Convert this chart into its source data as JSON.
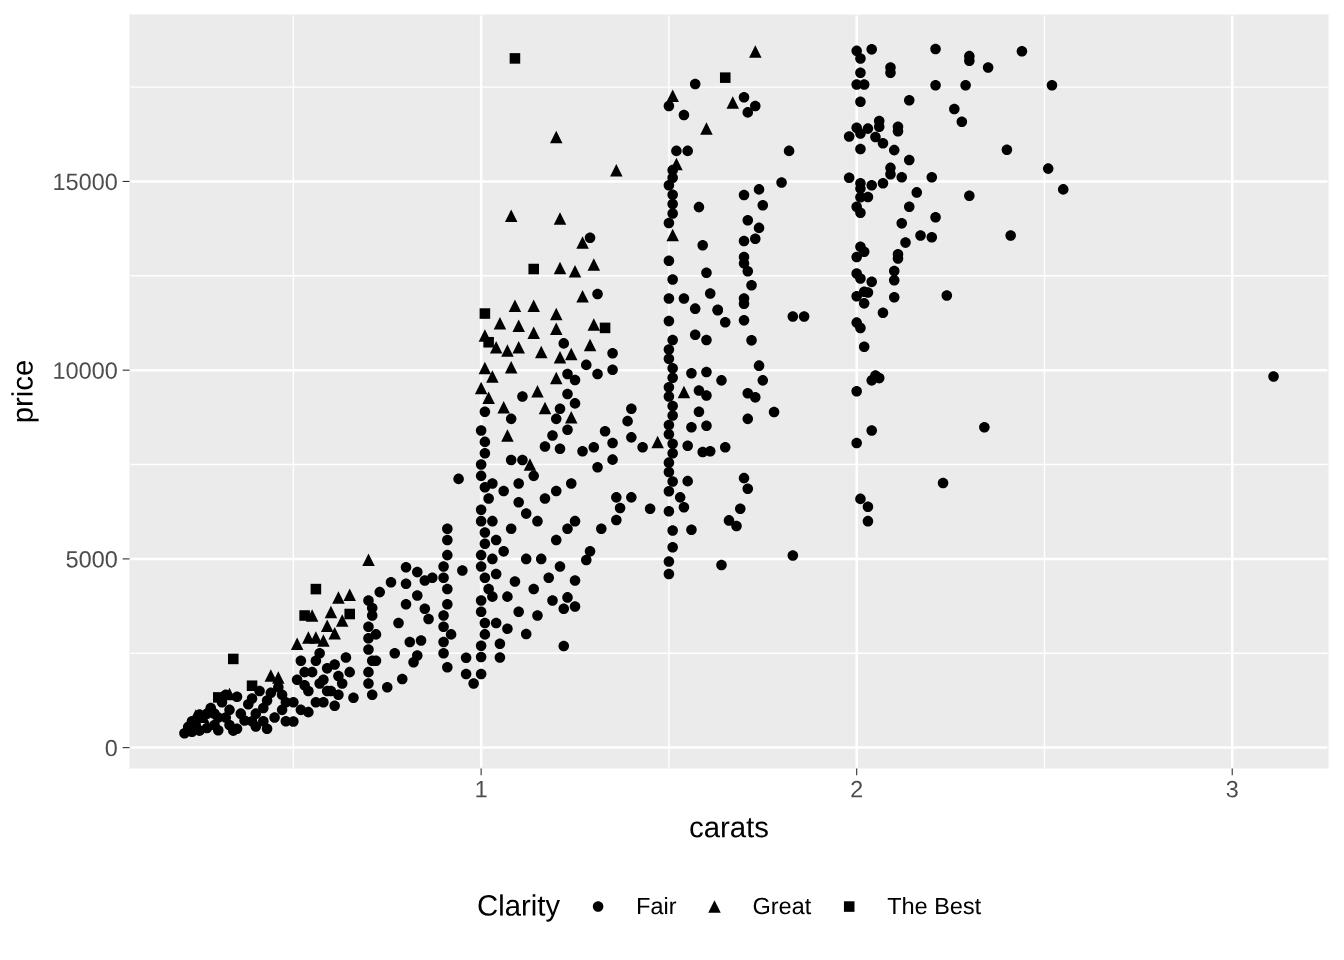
{
  "chart_data": {
    "type": "scatter",
    "xlabel": "carats",
    "ylabel": "price",
    "legend_title": "Clarity",
    "legend": "bottom",
    "grid": true,
    "xlim": [
      0.065,
      3.255
    ],
    "ylim": [
      -540,
      19410
    ],
    "xticks": [
      1,
      2,
      3
    ],
    "yticks": [
      0,
      5000,
      10000,
      15000
    ],
    "series": [
      {
        "name": "Fair",
        "color": "#000000",
        "marker": "circle",
        "x": [
          0.21,
          0.23,
          0.23,
          0.25,
          0.25,
          0.27,
          0.28,
          0.3,
          0.3,
          0.31,
          0.33,
          0.33,
          0.35,
          0.35,
          0.37,
          0.38,
          0.4,
          0.4,
          0.41,
          0.43,
          0.43,
          0.45,
          0.46,
          0.48,
          0.48,
          0.5,
          0.5,
          0.51,
          0.52,
          0.54,
          0.54,
          0.55,
          0.57,
          0.58,
          0.58,
          0.61,
          0.6,
          0.61,
          0.63,
          0.64,
          0.66,
          0.65,
          0.71,
          0.7,
          0.7,
          0.7,
          0.71,
          0.73,
          0.72,
          0.72,
          0.75,
          0.76,
          0.77,
          0.78,
          0.79,
          0.8,
          0.8,
          0.8,
          0.81,
          0.83,
          0.83,
          0.82,
          0.83,
          0.84,
          0.85,
          0.85,
          0.86,
          0.87,
          0.91,
          0.9,
          0.9,
          0.91,
          0.9,
          0.91,
          0.91,
          0.94,
          0.92,
          0.96,
          0.98,
          0.96,
          0.95,
          1.0,
          1.0,
          1.01,
          1.0,
          1.02,
          1.0,
          1.01,
          1.0,
          1.02,
          1.0,
          1.01,
          1.0,
          1.01,
          1.03,
          1.04,
          1.05,
          1.05,
          1.07,
          1.12,
          1.22,
          1.22,
          1.23,
          1.25,
          1.25,
          1.28,
          1.29,
          1.32,
          1.36,
          1.37,
          1.36,
          1.31,
          1.35,
          1.35,
          1.3,
          1.27,
          1.21,
          1.17,
          1.08,
          1.11,
          1.1,
          1.15,
          1.2,
          1.12,
          1.18,
          1.07,
          1.15,
          1.2,
          1.25,
          1.1,
          1.08,
          1.19,
          1.23,
          1.2,
          1.21,
          1.25,
          1.11,
          1.23,
          1.25,
          1.23,
          1.31,
          1.28,
          1.35,
          1.35,
          1.22,
          1.33,
          1.4,
          1.39,
          1.4,
          1.43,
          1.4,
          1.45,
          1.29,
          1.31,
          1.5,
          1.5,
          1.51,
          1.51,
          1.5,
          1.5,
          1.5,
          1.51,
          1.5,
          1.51,
          1.5,
          1.51,
          1.5,
          1.51,
          1.5,
          1.5,
          1.51,
          1.5,
          1.5,
          1.51,
          1.5,
          1.51,
          1.52,
          1.55,
          1.5,
          1.54,
          1.54,
          1.57,
          1.55,
          1.53,
          1.54,
          1.56,
          1.55,
          1.56,
          1.6,
          1.58,
          1.6,
          1.58,
          1.56,
          1.6,
          1.64,
          1.57,
          1.6,
          1.63,
          1.65,
          1.7,
          1.72,
          1.7,
          1.74,
          1.75,
          1.71,
          1.73,
          1.78,
          1.71,
          1.65,
          1.59,
          1.61,
          1.7,
          1.71,
          1.69,
          1.66,
          1.68,
          1.83,
          1.64,
          1.83,
          1.86,
          1.57,
          1.7,
          1.73,
          1.71,
          1.82,
          1.8,
          1.74,
          1.7,
          1.75,
          1.58,
          1.71,
          1.74,
          1.73,
          1.7,
          1.59,
          1.7,
          1.7,
          1.71,
          1.6,
          1.72,
          1.61,
          1.7,
          1.63,
          2.0,
          2.04,
          2.01,
          2.01,
          2.0,
          2.02,
          2.01,
          2.09,
          2.09,
          2.21,
          2.21,
          2.29,
          2.3,
          2.3,
          2.35,
          2.44,
          2.52,
          2.14,
          2.26,
          2.28,
          2.0,
          2.03,
          2.06,
          2.06,
          2.11,
          2.11,
          1.98,
          2.01,
          2.05,
          2.07,
          2.01,
          2.1,
          2.14,
          2.4,
          2.51,
          1.98,
          2.01,
          2.01,
          2.04,
          2.07,
          2.09,
          2.09,
          2.12,
          2.2,
          2.55,
          2.16,
          2.3,
          2.01,
          2.03,
          2.0,
          2.01,
          2.14,
          2.21,
          2.12,
          2.17,
          2.2,
          2.41,
          2.13,
          2.01,
          2.02,
          2.0,
          2.11,
          2.11,
          2.1,
          2.1,
          2.0,
          2.01,
          2.04,
          2.0,
          2.02,
          2.03,
          2.02,
          2.1,
          2.24,
          2.07,
          2.0,
          2.01,
          2.02,
          2.05,
          2.06,
          2.04,
          2.0,
          3.11,
          2.04,
          2.34,
          2.0,
          2.23,
          2.01,
          2.03,
          2.03,
          0.22,
          0.24,
          0.29,
          0.29,
          0.32,
          0.32,
          0.34,
          0.36,
          0.39,
          0.39,
          0.42,
          0.42,
          0.44,
          0.47,
          0.47,
          0.27,
          0.52,
          0.53,
          0.56,
          0.57,
          0.59,
          0.59,
          0.62,
          0.62,
          0.56,
          0.53,
          0.7,
          0.7,
          0.71,
          0.71,
          0.7,
          0.9,
          0.9,
          0.91,
          0.9,
          0.91,
          1.0,
          1.01,
          1.0,
          1.01,
          1.0,
          1.01,
          1.0,
          1.01,
          1.0,
          1.01,
          1.03,
          1.03,
          1.03,
          1.04,
          1.04,
          1.06,
          1.08,
          1.09,
          1.1,
          1.12,
          1.14,
          1.16,
          1.17,
          1.19,
          1.21,
          1.23,
          1.24,
          1.14,
          1.06,
          1.51,
          1.5,
          1.51,
          1.5,
          1.51,
          1.5,
          1.51,
          1.5,
          1.51,
          1.51,
          1.51
        ],
        "values": [
          380,
          420,
          700,
          450,
          880,
          520,
          1050,
          460,
          800,
          1200,
          600,
          1000,
          500,
          1350,
          720,
          1150,
          560,
          900,
          1500,
          500,
          1250,
          800,
          1600,
          700,
          1200,
          690,
          1200,
          1800,
          2300,
          940,
          1500,
          2000,
          2500,
          1200,
          1800,
          1110,
          1500,
          2200,
          1700,
          2390,
          1320,
          2000,
          1400,
          2000,
          2600,
          3200,
          3700,
          4120,
          2300,
          3000,
          1600,
          4380,
          2500,
          3300,
          1820,
          4780,
          4340,
          3800,
          2800,
          4650,
          4030,
          2260,
          2440,
          2840,
          4430,
          3680,
          3410,
          4500,
          2130,
          2800,
          3500,
          4200,
          4800,
          5500,
          5800,
          7120,
          3000,
          1950,
          1700,
          2380,
          4690,
          1950,
          2400,
          3000,
          3600,
          4200,
          4800,
          5400,
          6000,
          6600,
          7200,
          7800,
          8400,
          8900,
          5000,
          3300,
          2750,
          2390,
          3150,
          3010,
          2690,
          3680,
          3980,
          3740,
          4430,
          4970,
          5200,
          5800,
          6030,
          6350,
          6630,
          7430,
          7630,
          8070,
          7960,
          7850,
          7920,
          7980,
          7620,
          7620,
          6500,
          6000,
          5500,
          5000,
          4500,
          4000,
          3500,
          6800,
          6000,
          7000,
          8710,
          8270,
          8420,
          8710,
          8980,
          9120,
          9300,
          9370,
          9740,
          9900,
          9900,
          10140,
          10010,
          10450,
          10710,
          8380,
          8980,
          8650,
          8220,
          7960,
          6630,
          6330,
          13510,
          12020,
          4600,
          4930,
          5310,
          5750,
          6260,
          6790,
          7300,
          7800,
          8300,
          8800,
          9300,
          9800,
          10300,
          10800,
          11300,
          11900,
          12400,
          12900,
          13900,
          14400,
          14900,
          15300,
          15810,
          15810,
          17000,
          16760,
          11900,
          11630,
          7060,
          6630,
          6370,
          5770,
          8000,
          8490,
          8530,
          8900,
          9330,
          9460,
          9920,
          9950,
          9730,
          10940,
          10800,
          11600,
          11270,
          11320,
          10790,
          11760,
          10120,
          9730,
          9390,
          9280,
          8890,
          8710,
          7960,
          7830,
          7850,
          7140,
          6860,
          6330,
          6020,
          5870,
          5090,
          4840,
          11420,
          11420,
          17580,
          17230,
          17000,
          16830,
          15810,
          14970,
          14790,
          14640,
          14370,
          14320,
          13970,
          13770,
          13480,
          13420,
          13310,
          13000,
          12830,
          12620,
          12580,
          12250,
          12030,
          11900,
          11590,
          18460,
          18500,
          18260,
          17880,
          17570,
          17570,
          17110,
          18020,
          17880,
          18510,
          17550,
          17550,
          18320,
          18200,
          18020,
          18450,
          17550,
          17150,
          16920,
          16580,
          16420,
          16400,
          16600,
          16450,
          16450,
          16330,
          16190,
          16270,
          16180,
          16010,
          15860,
          15830,
          15570,
          15840,
          15340,
          15100,
          14950,
          14810,
          14900,
          14950,
          15360,
          15190,
          15110,
          15110,
          14790,
          14710,
          14620,
          14580,
          14590,
          14330,
          14170,
          14330,
          14050,
          13890,
          13570,
          13520,
          13570,
          13380,
          13270,
          13140,
          13000,
          13070,
          12960,
          12630,
          12380,
          12560,
          12430,
          12340,
          11960,
          12080,
          12060,
          11770,
          11930,
          11980,
          11520,
          11260,
          11120,
          10620,
          9860,
          9790,
          9730,
          9440,
          9830,
          8400,
          8490,
          8070,
          7010,
          6590,
          6380,
          6000,
          550,
          600,
          600,
          900,
          800,
          1400,
          450,
          900,
          700,
          1300,
          700,
          1050,
          1450,
          1000,
          1400,
          900,
          1000,
          1650,
          1200,
          1700,
          1500,
          2100,
          1400,
          1900,
          2300,
          2000,
          1700,
          2900,
          3500,
          2300,
          3900,
          2500,
          3200,
          3800,
          4500,
          5100,
          2700,
          3300,
          3900,
          4500,
          5100,
          5700,
          6300,
          6900,
          7500,
          8100,
          4000,
          6000,
          7000,
          4600,
          5500,
          5200,
          5800,
          4400,
          3600,
          6200,
          4200,
          5000,
          6600,
          3900,
          4800,
          5800,
          7000,
          7200,
          6800,
          7050,
          7550,
          8050,
          8550,
          9050,
          9550,
          10050,
          10550,
          14150,
          14650,
          15100
        ]
      },
      {
        "name": "Great",
        "color": "#000000",
        "marker": "triangle",
        "x": [
          0.24,
          0.26,
          0.33,
          0.44,
          0.46,
          0.51,
          0.54,
          0.56,
          0.58,
          0.61,
          0.59,
          0.6,
          0.63,
          0.55,
          0.62,
          0.65,
          0.7,
          1.09,
          1.14,
          1.2,
          1.05,
          1.1,
          1.14,
          1.2,
          1.3,
          1.01,
          1.29,
          1.04,
          1.07,
          1.1,
          1.16,
          1.21,
          1.24,
          1.08,
          1.01,
          1.03,
          1.2,
          1.0,
          1.02,
          1.15,
          1.17,
          1.06,
          1.07,
          1.24,
          1.47,
          1.13,
          1.2,
          1.36,
          1.08,
          1.21,
          1.27,
          1.21,
          1.25,
          1.3,
          1.27,
          1.51,
          1.67,
          1.73,
          1.6,
          1.52,
          1.51,
          1.54
        ],
        "values": [
          850,
          820,
          1420,
          1910,
          1860,
          2750,
          2920,
          2920,
          2840,
          3030,
          3230,
          3590,
          3370,
          3500,
          3980,
          4050,
          4980,
          11710,
          11710,
          11490,
          11240,
          11180,
          10990,
          11100,
          11210,
          10920,
          10670,
          10610,
          10520,
          10610,
          10480,
          10340,
          10430,
          10080,
          10060,
          9830,
          9790,
          9530,
          9270,
          9440,
          9000,
          9020,
          8270,
          8750,
          8100,
          7500,
          16180,
          15300,
          14090,
          14020,
          13380,
          12710,
          12620,
          12800,
          11960,
          17270,
          17090,
          18440,
          16400,
          15460,
          13580,
          9420
        ]
      },
      {
        "name": "The Best",
        "color": "#000000",
        "marker": "square",
        "x": [
          0.3,
          0.34,
          0.39,
          0.53,
          0.56,
          0.65,
          1.01,
          1.02,
          1.09,
          1.14,
          1.33,
          1.65
        ],
        "values": [
          1330,
          2350,
          1640,
          3500,
          4200,
          3540,
          11500,
          10740,
          18260,
          12680,
          11120,
          17750
        ]
      }
    ]
  }
}
